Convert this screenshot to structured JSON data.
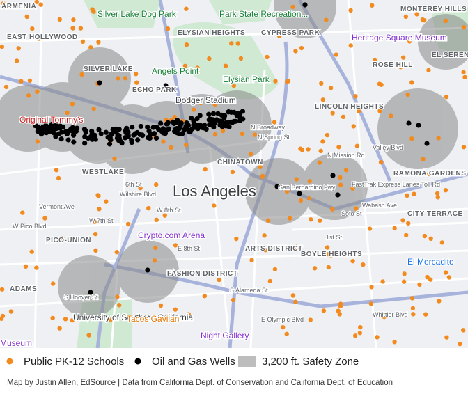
{
  "labels": [
    "ARMENIA",
    "EAST HOLLYWOOD",
    "Silver Lake Dog Park",
    "ELYSIAN HEIGHTS",
    "Park State Recreation...",
    "CYPRESS PARK",
    "MONTEREY HILLS",
    "Heritage Square Museum",
    "EL SERENO",
    "SILVER LAKE",
    "Angels Point",
    "Elysian Park",
    "ROSE HILL",
    "ECHO PARK",
    "Dodger Stadium",
    "LINCOLN HEIGHTS",
    "Original Tommy's",
    "WESTLAKE",
    "CHINATOWN",
    "Valley Blvd",
    "Los Angeles",
    "RAMONA GARDENS",
    "CITY TERRACE",
    "W Pico Blvd",
    "PICO-UNION",
    "Crypto.com Arena",
    "ARTS DISTRICT",
    "BOYLE HEIGHTS",
    "El Mercadito",
    "FASHION DISTRICT",
    "ADAMS",
    "University of Southern California",
    "Tacos Gavilan",
    "Night Gallery",
    "E Olympic Blvd",
    "Whittier Blvd",
    "Museum",
    "N Broadway",
    "N Spring St",
    "6th St",
    "Wilshire Blvd",
    "W 7th St",
    "W 8th St",
    "Vermont Ave",
    "S Hoover St",
    "S Alameda St",
    "E 8th St",
    "1st St",
    "Wabash Ave",
    "N Mission Rd",
    "FastTrak Express Lanes Toll Rd",
    "Soto St",
    "San Bernardino Fwy"
  ],
  "legend": [
    "Public PK-12 Schools",
    "Oil and Gas Wells",
    "3,200 ft. Safety Zone"
  ],
  "credit": "Map by Justin Allen, EdSource | Data from California Dept. of Conservation and California Dept. of Education"
}
